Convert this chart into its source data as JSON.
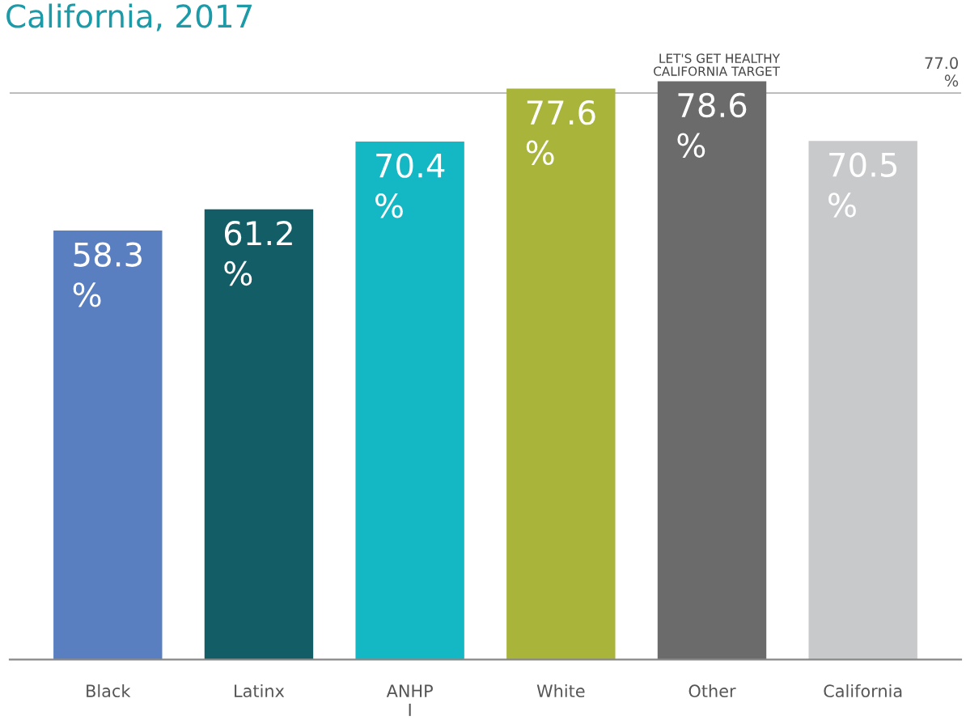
{
  "chart_data": {
    "type": "bar",
    "title": "California, 2017",
    "categories": [
      "Black",
      "Latinx",
      "ANHP\nI",
      "White",
      "Other",
      "California"
    ],
    "values": [
      58.3,
      61.2,
      70.4,
      77.6,
      78.6,
      70.5
    ],
    "colors": [
      "#5a7fc1",
      "#135e66",
      "#14b8c4",
      "#a9b43b",
      "#6b6b6b",
      "#c8c9cb"
    ],
    "value_labels": [
      "58.3\n%",
      "61.2\n%",
      "70.4\n%",
      "77.6\n%",
      "78.6\n%",
      "70.5\n%"
    ],
    "ref_lines": [
      {
        "axis": "y",
        "value": 77.0,
        "label": "LET'S GET HEALTHY\nCALIFORNIA TARGET",
        "color": "#bdbdbd",
        "line_style": "solid"
      }
    ],
    "annotations": [
      "77.0\n%"
    ],
    "grid": false,
    "legend": false
  }
}
